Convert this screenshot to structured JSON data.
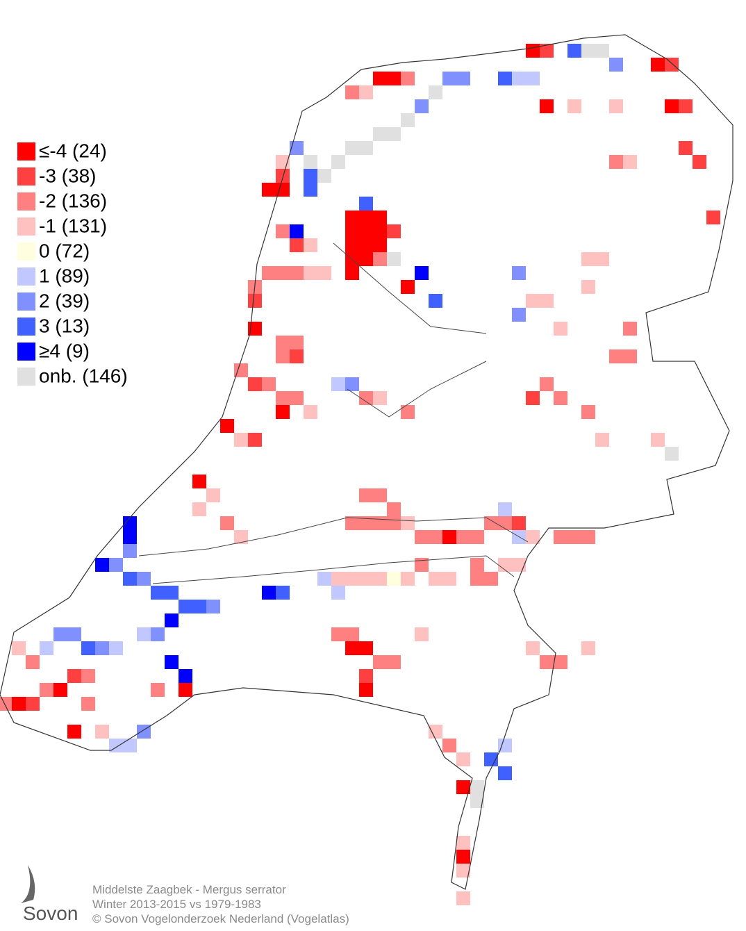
{
  "legend": {
    "items": [
      {
        "label": "≤-4 (24)",
        "color": "#ff0000"
      },
      {
        "label": "-3 (38)",
        "color": "#ff4040"
      },
      {
        "label": "-2 (136)",
        "color": "#ff8080"
      },
      {
        "label": "-1 (131)",
        "color": "#ffc0c0"
      },
      {
        "label": "0 (72)",
        "color": "#ffffe0"
      },
      {
        "label": "1 (89)",
        "color": "#c0c8ff"
      },
      {
        "label": "2 (39)",
        "color": "#8090ff"
      },
      {
        "label": "3 (13)",
        "color": "#4060ff"
      },
      {
        "label": "≥4 (9)",
        "color": "#0000ff"
      },
      {
        "label": "onb. (146)",
        "color": "#e0e0e0"
      }
    ]
  },
  "footer": {
    "logo": "Sovon",
    "lines": [
      "Middelste Zaagbek - Mergus serrator",
      "Winter 2013-2015 vs 1979-1983",
      "© Sovon Vogelonderzoek Nederland (Vogelatlas)"
    ]
  }
}
